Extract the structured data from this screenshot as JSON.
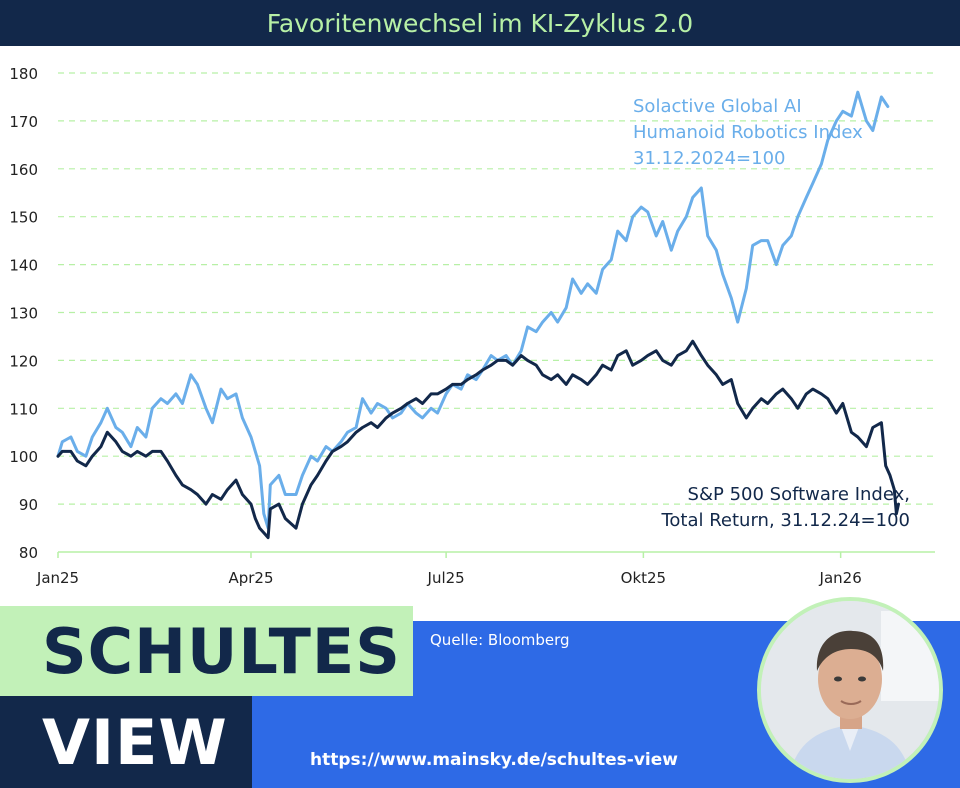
{
  "header": {
    "title": "Favoritenwechsel im KI-Zyklus 2.0"
  },
  "footer": {
    "brand_line1": "SCHULTES",
    "brand_line2": "VIEW",
    "source": "Quelle: Bloomberg",
    "url": "https://www.mainsky.de/schultes-view"
  },
  "colors": {
    "title_bg": "#12284a",
    "title_text": "#b7f0a6",
    "series_ai": "#6aaeea",
    "series_sw": "#12284a",
    "grid": "#b7f0a6",
    "footer_blue": "#2e6ae6",
    "brand_green": "#c2f1b8"
  },
  "chart_data": {
    "type": "line",
    "title": "Favoritenwechsel im KI-Zyklus 2.0",
    "ylim": [
      80,
      180
    ],
    "yticks": [
      80,
      90,
      100,
      110,
      120,
      130,
      140,
      150,
      160,
      170,
      180
    ],
    "xlim": [
      "2025-01-01",
      "2026-02-14"
    ],
    "xticks": [
      {
        "label": "Jan25",
        "date": "2025-01-01"
      },
      {
        "label": "Apr25",
        "date": "2025-04-01"
      },
      {
        "label": "Jul25",
        "date": "2025-07-01"
      },
      {
        "label": "Okt25",
        "date": "2025-10-01"
      },
      {
        "label": "Jan26",
        "date": "2026-01-01"
      }
    ],
    "grid": true,
    "series": [
      {
        "name": "Solactive Global AI Humanoid Robotics Index 31.12.2024=100",
        "label_lines": [
          "Solactive Global AI",
          "Humanoid Robotics Index",
          "31.12.2024=100"
        ],
        "color": "#6aaeea",
        "points": [
          [
            "2025-01-01",
            100
          ],
          [
            "2025-01-03",
            103
          ],
          [
            "2025-01-07",
            104
          ],
          [
            "2025-01-10",
            101
          ],
          [
            "2025-01-14",
            100
          ],
          [
            "2025-01-17",
            104
          ],
          [
            "2025-01-21",
            107
          ],
          [
            "2025-01-24",
            110
          ],
          [
            "2025-01-28",
            106
          ],
          [
            "2025-01-31",
            105
          ],
          [
            "2025-02-04",
            102
          ],
          [
            "2025-02-07",
            106
          ],
          [
            "2025-02-11",
            104
          ],
          [
            "2025-02-14",
            110
          ],
          [
            "2025-02-18",
            112
          ],
          [
            "2025-02-21",
            111
          ],
          [
            "2025-02-25",
            113
          ],
          [
            "2025-02-28",
            111
          ],
          [
            "2025-03-04",
            117
          ],
          [
            "2025-03-07",
            115
          ],
          [
            "2025-03-11",
            110
          ],
          [
            "2025-03-14",
            107
          ],
          [
            "2025-03-18",
            114
          ],
          [
            "2025-03-21",
            112
          ],
          [
            "2025-03-25",
            113
          ],
          [
            "2025-03-28",
            108
          ],
          [
            "2025-04-01",
            104
          ],
          [
            "2025-04-03",
            101
          ],
          [
            "2025-04-05",
            98
          ],
          [
            "2025-04-07",
            88
          ],
          [
            "2025-04-09",
            85
          ],
          [
            "2025-04-10",
            94
          ],
          [
            "2025-04-14",
            96
          ],
          [
            "2025-04-17",
            92
          ],
          [
            "2025-04-22",
            92
          ],
          [
            "2025-04-25",
            96
          ],
          [
            "2025-04-29",
            100
          ],
          [
            "2025-05-02",
            99
          ],
          [
            "2025-05-06",
            102
          ],
          [
            "2025-05-09",
            101
          ],
          [
            "2025-05-13",
            103
          ],
          [
            "2025-05-16",
            105
          ],
          [
            "2025-05-20",
            106
          ],
          [
            "2025-05-23",
            112
          ],
          [
            "2025-05-27",
            109
          ],
          [
            "2025-05-30",
            111
          ],
          [
            "2025-06-03",
            110
          ],
          [
            "2025-06-06",
            108
          ],
          [
            "2025-06-10",
            109
          ],
          [
            "2025-06-13",
            111
          ],
          [
            "2025-06-17",
            109
          ],
          [
            "2025-06-20",
            108
          ],
          [
            "2025-06-24",
            110
          ],
          [
            "2025-06-27",
            109
          ],
          [
            "2025-07-01",
            113
          ],
          [
            "2025-07-04",
            115
          ],
          [
            "2025-07-08",
            114
          ],
          [
            "2025-07-11",
            117
          ],
          [
            "2025-07-15",
            116
          ],
          [
            "2025-07-18",
            118
          ],
          [
            "2025-07-22",
            121
          ],
          [
            "2025-07-25",
            120
          ],
          [
            "2025-07-29",
            121
          ],
          [
            "2025-08-01",
            119
          ],
          [
            "2025-08-05",
            122
          ],
          [
            "2025-08-08",
            127
          ],
          [
            "2025-08-12",
            126
          ],
          [
            "2025-08-15",
            128
          ],
          [
            "2025-08-19",
            130
          ],
          [
            "2025-08-22",
            128
          ],
          [
            "2025-08-26",
            131
          ],
          [
            "2025-08-29",
            137
          ],
          [
            "2025-09-02",
            134
          ],
          [
            "2025-09-05",
            136
          ],
          [
            "2025-09-09",
            134
          ],
          [
            "2025-09-12",
            139
          ],
          [
            "2025-09-16",
            141
          ],
          [
            "2025-09-19",
            147
          ],
          [
            "2025-09-23",
            145
          ],
          [
            "2025-09-26",
            150
          ],
          [
            "2025-09-30",
            152
          ],
          [
            "2025-10-03",
            151
          ],
          [
            "2025-10-07",
            146
          ],
          [
            "2025-10-10",
            149
          ],
          [
            "2025-10-14",
            143
          ],
          [
            "2025-10-17",
            147
          ],
          [
            "2025-10-21",
            150
          ],
          [
            "2025-10-24",
            154
          ],
          [
            "2025-10-28",
            156
          ],
          [
            "2025-10-31",
            146
          ],
          [
            "2025-11-04",
            143
          ],
          [
            "2025-11-07",
            138
          ],
          [
            "2025-11-11",
            133
          ],
          [
            "2025-11-14",
            128
          ],
          [
            "2025-11-18",
            135
          ],
          [
            "2025-11-21",
            144
          ],
          [
            "2025-11-25",
            145
          ],
          [
            "2025-11-28",
            145
          ],
          [
            "2025-12-02",
            140
          ],
          [
            "2025-12-05",
            144
          ],
          [
            "2025-12-09",
            146
          ],
          [
            "2025-12-12",
            150
          ],
          [
            "2025-12-16",
            154
          ],
          [
            "2025-12-19",
            157
          ],
          [
            "2025-12-23",
            161
          ],
          [
            "2025-12-26",
            166
          ],
          [
            "2025-12-30",
            170
          ],
          [
            "2026-01-02",
            172
          ],
          [
            "2026-01-06",
            171
          ],
          [
            "2026-01-09",
            176
          ],
          [
            "2026-01-13",
            170
          ],
          [
            "2026-01-16",
            168
          ],
          [
            "2026-01-20",
            175
          ],
          [
            "2026-01-23",
            173
          ]
        ]
      },
      {
        "name": "S&P 500 Software Index, Total Return, 31.12.24=100",
        "label_lines": [
          "S&P 500 Software Index,",
          "Total Return, 31.12.24=100"
        ],
        "color": "#12284a",
        "points": [
          [
            "2025-01-01",
            100
          ],
          [
            "2025-01-03",
            101
          ],
          [
            "2025-01-07",
            101
          ],
          [
            "2025-01-10",
            99
          ],
          [
            "2025-01-14",
            98
          ],
          [
            "2025-01-17",
            100
          ],
          [
            "2025-01-21",
            102
          ],
          [
            "2025-01-24",
            105
          ],
          [
            "2025-01-28",
            103
          ],
          [
            "2025-01-31",
            101
          ],
          [
            "2025-02-04",
            100
          ],
          [
            "2025-02-07",
            101
          ],
          [
            "2025-02-11",
            100
          ],
          [
            "2025-02-14",
            101
          ],
          [
            "2025-02-18",
            101
          ],
          [
            "2025-02-21",
            99
          ],
          [
            "2025-02-25",
            96
          ],
          [
            "2025-02-28",
            94
          ],
          [
            "2025-03-04",
            93
          ],
          [
            "2025-03-07",
            92
          ],
          [
            "2025-03-11",
            90
          ],
          [
            "2025-03-14",
            92
          ],
          [
            "2025-03-18",
            91
          ],
          [
            "2025-03-21",
            93
          ],
          [
            "2025-03-25",
            95
          ],
          [
            "2025-03-28",
            92
          ],
          [
            "2025-04-01",
            90
          ],
          [
            "2025-04-03",
            87
          ],
          [
            "2025-04-05",
            85
          ],
          [
            "2025-04-07",
            84
          ],
          [
            "2025-04-09",
            83
          ],
          [
            "2025-04-10",
            89
          ],
          [
            "2025-04-14",
            90
          ],
          [
            "2025-04-17",
            87
          ],
          [
            "2025-04-22",
            85
          ],
          [
            "2025-04-25",
            90
          ],
          [
            "2025-04-29",
            94
          ],
          [
            "2025-05-02",
            96
          ],
          [
            "2025-05-06",
            99
          ],
          [
            "2025-05-09",
            101
          ],
          [
            "2025-05-13",
            102
          ],
          [
            "2025-05-16",
            103
          ],
          [
            "2025-05-20",
            105
          ],
          [
            "2025-05-23",
            106
          ],
          [
            "2025-05-27",
            107
          ],
          [
            "2025-05-30",
            106
          ],
          [
            "2025-06-03",
            108
          ],
          [
            "2025-06-06",
            109
          ],
          [
            "2025-06-10",
            110
          ],
          [
            "2025-06-13",
            111
          ],
          [
            "2025-06-17",
            112
          ],
          [
            "2025-06-20",
            111
          ],
          [
            "2025-06-24",
            113
          ],
          [
            "2025-06-27",
            113
          ],
          [
            "2025-07-01",
            114
          ],
          [
            "2025-07-04",
            115
          ],
          [
            "2025-07-08",
            115
          ],
          [
            "2025-07-11",
            116
          ],
          [
            "2025-07-15",
            117
          ],
          [
            "2025-07-18",
            118
          ],
          [
            "2025-07-22",
            119
          ],
          [
            "2025-07-25",
            120
          ],
          [
            "2025-07-29",
            120
          ],
          [
            "2025-08-01",
            119
          ],
          [
            "2025-08-05",
            121
          ],
          [
            "2025-08-08",
            120
          ],
          [
            "2025-08-12",
            119
          ],
          [
            "2025-08-15",
            117
          ],
          [
            "2025-08-19",
            116
          ],
          [
            "2025-08-22",
            117
          ],
          [
            "2025-08-26",
            115
          ],
          [
            "2025-08-29",
            117
          ],
          [
            "2025-09-02",
            116
          ],
          [
            "2025-09-05",
            115
          ],
          [
            "2025-09-09",
            117
          ],
          [
            "2025-09-12",
            119
          ],
          [
            "2025-09-16",
            118
          ],
          [
            "2025-09-19",
            121
          ],
          [
            "2025-09-23",
            122
          ],
          [
            "2025-09-26",
            119
          ],
          [
            "2025-09-30",
            120
          ],
          [
            "2025-10-03",
            121
          ],
          [
            "2025-10-07",
            122
          ],
          [
            "2025-10-10",
            120
          ],
          [
            "2025-10-14",
            119
          ],
          [
            "2025-10-17",
            121
          ],
          [
            "2025-10-21",
            122
          ],
          [
            "2025-10-24",
            124
          ],
          [
            "2025-10-28",
            121
          ],
          [
            "2025-10-31",
            119
          ],
          [
            "2025-11-04",
            117
          ],
          [
            "2025-11-07",
            115
          ],
          [
            "2025-11-11",
            116
          ],
          [
            "2025-11-14",
            111
          ],
          [
            "2025-11-18",
            108
          ],
          [
            "2025-11-21",
            110
          ],
          [
            "2025-11-25",
            112
          ],
          [
            "2025-11-28",
            111
          ],
          [
            "2025-12-02",
            113
          ],
          [
            "2025-12-05",
            114
          ],
          [
            "2025-12-09",
            112
          ],
          [
            "2025-12-12",
            110
          ],
          [
            "2025-12-16",
            113
          ],
          [
            "2025-12-19",
            114
          ],
          [
            "2025-12-23",
            113
          ],
          [
            "2025-12-26",
            112
          ],
          [
            "2025-12-30",
            109
          ],
          [
            "2026-01-02",
            111
          ],
          [
            "2026-01-06",
            105
          ],
          [
            "2026-01-09",
            104
          ],
          [
            "2026-01-13",
            102
          ],
          [
            "2026-01-16",
            106
          ],
          [
            "2026-01-20",
            107
          ],
          [
            "2026-01-22",
            98
          ],
          [
            "2026-01-24",
            96
          ],
          [
            "2026-01-26",
            93
          ],
          [
            "2026-01-27",
            88
          ],
          [
            "2026-01-28",
            90
          ]
        ]
      }
    ]
  }
}
